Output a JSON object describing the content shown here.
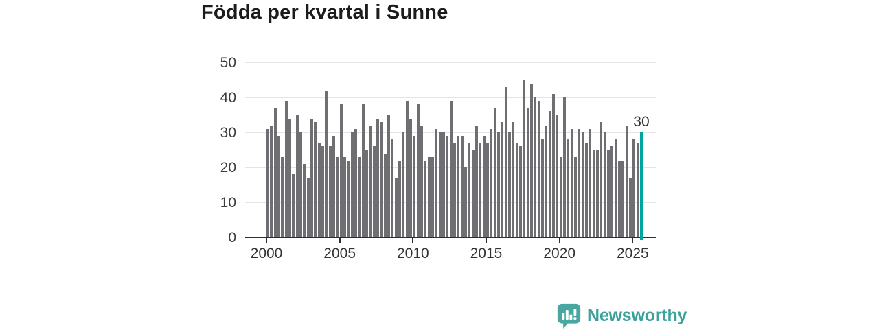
{
  "title": "Födda per kvartal i Sunne",
  "branding": {
    "name": "Newsworthy",
    "icon": "newsworthy-chart-bubble-icon",
    "color": "#3ba19b",
    "icon_color": "#48a7a0"
  },
  "colors": {
    "bar": "#6f6e73",
    "highlight": "#00a59e",
    "grid": "#e4e4e4",
    "axis": "#2e2e2e",
    "text": "#333333"
  },
  "chart_data": {
    "type": "bar",
    "title": "Födda per kvartal i Sunne",
    "period": "quarterly",
    "x_start": "2000 Q1",
    "x_end": "2025 Q3",
    "values": [
      31,
      32,
      37,
      29,
      23,
      39,
      34,
      18,
      35,
      30,
      21,
      17,
      34,
      33,
      27,
      26,
      42,
      26,
      29,
      23,
      38,
      23,
      22,
      30,
      31,
      23,
      38,
      25,
      32,
      26,
      34,
      33,
      24,
      35,
      28,
      17,
      22,
      30,
      39,
      34,
      29,
      38,
      32,
      22,
      23,
      23,
      31,
      30,
      30,
      29,
      39,
      27,
      29,
      29,
      20,
      27,
      25,
      32,
      27,
      29,
      27,
      31,
      37,
      30,
      33,
      43,
      30,
      33,
      27,
      26,
      45,
      37,
      44,
      40,
      39,
      28,
      32,
      36,
      41,
      35,
      23,
      40,
      28,
      31,
      23,
      31,
      30,
      27,
      31,
      25,
      25,
      33,
      30,
      25,
      26,
      28,
      22,
      22,
      32,
      17,
      28,
      27,
      30
    ],
    "highlight": {
      "index": 102,
      "label": "30",
      "color": "#00a59e"
    },
    "yticks": [
      0,
      10,
      20,
      30,
      40,
      50
    ],
    "xticks": [
      2000,
      2005,
      2010,
      2015,
      2020,
      2025
    ],
    "ylim": [
      0,
      50
    ],
    "grid": true,
    "legend": "none",
    "xlabel": "",
    "ylabel": ""
  }
}
